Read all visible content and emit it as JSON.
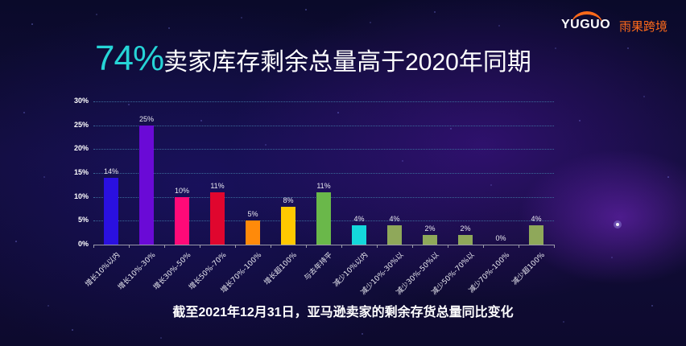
{
  "brand": {
    "logo_en": "YUGUO",
    "logo_cn": "雨果跨境",
    "accent": "#ff6a1a"
  },
  "title": {
    "highlight": "74%",
    "text": "卖家库存剩余总量高于2020年同期",
    "highlight_color": "#26d4d6"
  },
  "caption": "截至2021年12月31日，亚马逊卖家的剩余存货总量同比变化",
  "chart_data": {
    "type": "bar",
    "title": "74%卖家库存剩余总量高于2020年同期",
    "subtitle": "截至2021年12月31日，亚马逊卖家的剩余存货总量同比变化",
    "xlabel": "",
    "ylabel": "",
    "ylim": [
      0,
      30
    ],
    "yticks": [
      "0%",
      "5%",
      "10%",
      "15%",
      "20%",
      "25%",
      "30%"
    ],
    "grid": true,
    "legend": "none",
    "categories": [
      "增长10%以内",
      "增长10%-30%",
      "增长30%-50%",
      "增长50%-70%",
      "增长70%-100%",
      "增长超100%",
      "与去年持平",
      "减少10%以内",
      "减少10%-30%以",
      "减少30%-50%以",
      "减少50%-70%以",
      "减少70%-100%",
      "减少超100%"
    ],
    "values": [
      14,
      25,
      10,
      11,
      5,
      8,
      11,
      4,
      4,
      2,
      2,
      0,
      4
    ],
    "value_labels": [
      "14%",
      "25%",
      "10%",
      "11%",
      "5%",
      "8%",
      "11%",
      "4%",
      "4%",
      "2%",
      "2%",
      "0%",
      "4%"
    ],
    "colors": [
      "#2a10e0",
      "#6a0ad6",
      "#ff0a78",
      "#e0062e",
      "#ff8a0a",
      "#ffc800",
      "#6ab84a",
      "#14d8dc",
      "#8fa85a",
      "#8fa85a",
      "#8fa85a",
      "#8fa85a",
      "#8fa85a"
    ]
  }
}
